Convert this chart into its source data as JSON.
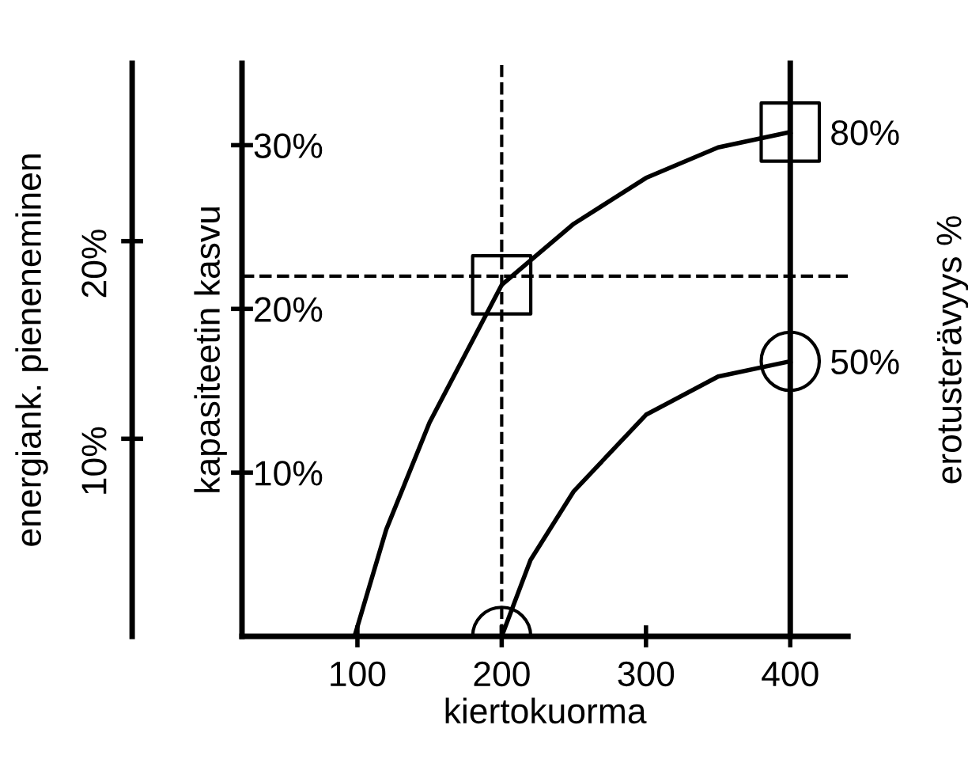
{
  "chart_data": {
    "type": "line",
    "xlabel": "kiertokuorma",
    "ylabel": "kapasiteetin kasvu",
    "y2label": "energiank. pieneneminen",
    "y3label": "erotusterävyys %",
    "xlim": [
      20,
      440
    ],
    "xticks": [
      100,
      200,
      300,
      400
    ],
    "ylim": [
      0,
      35
    ],
    "yticks": [
      {
        "value": 10,
        "label": "10%"
      },
      {
        "value": 20,
        "label": "20%"
      },
      {
        "value": 30,
        "label": "30%"
      }
    ],
    "y2lim": [
      0,
      29
    ],
    "y2ticks": [
      {
        "value": 10,
        "label": "10%"
      },
      {
        "value": 20,
        "label": "20%"
      }
    ],
    "y3lim": [
      14,
      89
    ],
    "y3ticks": [
      {
        "value": 50,
        "label": "50%"
      },
      {
        "value": 80,
        "label": "80%"
      }
    ],
    "series": [
      {
        "axis": "y3",
        "color": "#000000",
        "x": [
          98,
          120,
          150,
          200,
          250,
          300,
          350,
          400
        ],
        "values": [
          14,
          28,
          42,
          60,
          68,
          74,
          78,
          80
        ]
      },
      {
        "axis": "y3",
        "color": "#000000",
        "x": [
          200,
          220,
          250,
          300,
          350,
          400
        ],
        "values": [
          14,
          24,
          33,
          43,
          48,
          50
        ]
      },
      {
        "type": "scatter",
        "axis": "y3",
        "marker": "square",
        "color": "#000000",
        "x": [
          200,
          400
        ],
        "values": [
          60,
          80
        ]
      },
      {
        "type": "scatter",
        "axis": "y3",
        "marker": "circle",
        "color": "#000000",
        "x": [
          200,
          400
        ],
        "values": [
          14,
          50
        ]
      }
    ],
    "ref_lines": [
      {
        "axis": "y",
        "value": 22,
        "line_style": "dashed"
      },
      {
        "axis": "x",
        "value": 200,
        "line_style": "dashed"
      }
    ],
    "grid": false,
    "legend": false
  }
}
